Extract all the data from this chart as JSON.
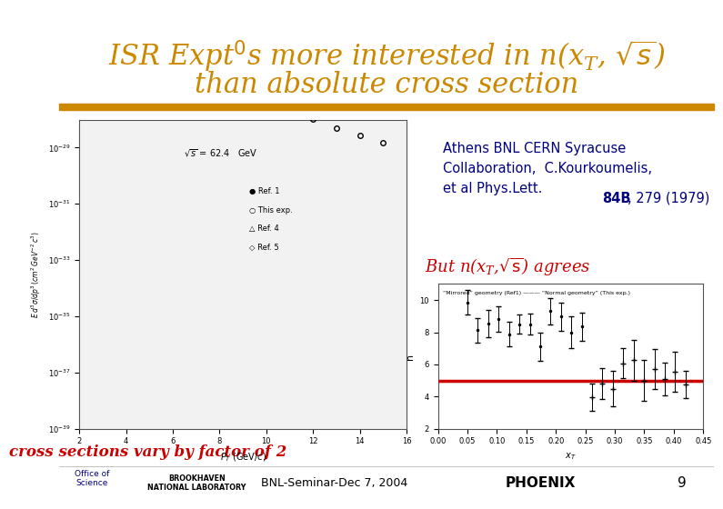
{
  "title_line1": "ISR Expt’s more interested in n(x_T, √s)",
  "title_line2": "than absolute cross section",
  "title_color": "#CC8800",
  "background_color": "#FFFFFF",
  "separator_color": "#CC8800",
  "ref_color": "#000080",
  "but_color": "#CC0000",
  "bottom_text": "cross sections vary by factor of 2",
  "bottom_color": "#CC0000",
  "footer_text": "BNL-Seminar-Dec 7, 2004",
  "footer_number": "9"
}
